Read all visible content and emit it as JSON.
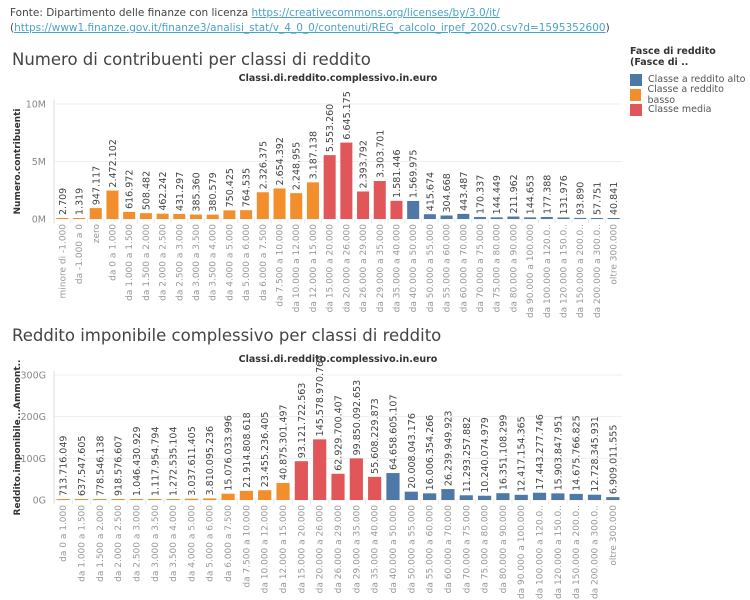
{
  "source": {
    "prefix": "Fonte: Dipartimento delle finanze con licenza ",
    "license_link": "https://creativecommons.org/licenses/by/3.0/it/",
    "open_paren": "(",
    "data_link": "https://www1.finanze.gov.it/finanze3/analisi_stat/v_4_0_0/contenuti/REG_calcolo_irpef_2020.csv?d=1595352600",
    "close_paren": ")"
  },
  "legend": {
    "title": "Fasce di reddito (Fasce di ..",
    "items": [
      {
        "label": "Classe a reddito alto",
        "color": "#4e79a7"
      },
      {
        "label": "Classe a reddito basso",
        "color": "#f28e2b"
      },
      {
        "label": "Classe media",
        "color": "#e15759"
      }
    ]
  },
  "chart_data": [
    {
      "type": "bar",
      "title": "Numero di contribuenti per classi di reddito",
      "header": "Classi.di.reddito.complessivo.in.euro",
      "xlabel": "Classi.di.reddito.complessivo.in.euro",
      "ylabel": "Numero.contribuenti",
      "ylim": [
        0,
        10000000
      ],
      "yticks": [
        {
          "v": 0,
          "label": "0M"
        },
        {
          "v": 5000000,
          "label": "5M"
        },
        {
          "v": 10000000,
          "label": "10M"
        }
      ],
      "grid": true,
      "legend": "right",
      "categories": [
        "minore di -1.000",
        "da -1.000 a 0",
        "zero",
        "da 0 a 1.000",
        "da 1.000 a 1.500",
        "da 1.500 a 2.000",
        "da 2.000 a 2.500",
        "da 2.500 a 3.000",
        "da 3.000 a 3.500",
        "da 3.500 a 4.000",
        "da 4.000 a 5.000",
        "da 5.000 a 6.000",
        "da 6.000 a 7.500",
        "da 7.500 a 10.000",
        "da 10.000 a 12.000",
        "da 12.000 a 15.000",
        "da 15.000 a 20.000",
        "da 20.000 a 26.000",
        "da 26.000 a 29.000",
        "da 29.000 a 35.000",
        "da 35.000 a 40.000",
        "da 40.000 a 50.000",
        "da 50.000 a 55.000",
        "da 55.000 a 60.000",
        "da 60.000 a 70.000",
        "da 70.000 a 75.000",
        "da 75.000 a 80.000",
        "da 80.000 a 90.000",
        "da 90.000 a 100.000",
        "da 100.000 a 120.0..",
        "da 120.000 a 150.0..",
        "da 150.000 a 200.0..",
        "da 200.000 a 300.0..",
        "oltre 300.000"
      ],
      "values": [
        2709,
        1319,
        947117,
        2472102,
        616972,
        508482,
        462242,
        431297,
        385360,
        380579,
        750425,
        764535,
        2326375,
        2654392,
        2248955,
        3187138,
        5553260,
        6645175,
        2393792,
        3303701,
        1581446,
        1569975,
        415674,
        304668,
        443487,
        170337,
        144449,
        211962,
        144653,
        177388,
        131976,
        93890,
        57751,
        40841
      ],
      "labels": [
        "2.709",
        "1.319",
        "947.117",
        "2.472.102",
        "616.972",
        "508.482",
        "462.242",
        "431.297",
        "385.360",
        "380.579",
        "750.425",
        "764.535",
        "2.326.375",
        "2.654.392",
        "2.248.955",
        "3.187.138",
        "5.553.260",
        "6.645.175",
        "2.393.792",
        "3.303.701",
        "1.581.446",
        "1.569.975",
        "415.674",
        "304.668",
        "443.487",
        "170.337",
        "144.449",
        "211.962",
        "144.653",
        "177.388",
        "131.976",
        "93.890",
        "57.751",
        "40.841"
      ],
      "classes": [
        "basso",
        "basso",
        "basso",
        "basso",
        "basso",
        "basso",
        "basso",
        "basso",
        "basso",
        "basso",
        "basso",
        "basso",
        "basso",
        "basso",
        "basso",
        "basso",
        "media",
        "media",
        "media",
        "media",
        "media",
        "alto",
        "alto",
        "alto",
        "alto",
        "alto",
        "alto",
        "alto",
        "alto",
        "alto",
        "alto",
        "alto",
        "alto",
        "alto"
      ]
    },
    {
      "type": "bar",
      "title": "Reddito imponibile complessivo per classi di reddito",
      "header": "Classi.di.reddito.complessivo.in.euro",
      "xlabel": "Classi.di.reddito.complessivo.in.euro",
      "ylabel": "Reddito.imponibile...Ammont..",
      "ylim": [
        0,
        300000000000
      ],
      "yticks": [
        {
          "v": 0,
          "label": "0G"
        },
        {
          "v": 100000000000,
          "label": "100G"
        },
        {
          "v": 200000000000,
          "label": "200G"
        },
        {
          "v": 300000000000,
          "label": "300G"
        }
      ],
      "grid": true,
      "legend": "right",
      "categories": [
        "da 0 a 1.000",
        "da 1.000 a 1.500",
        "da 1.500 a 2.000",
        "da 2.000 a 2.500",
        "da 2.500 a 3.000",
        "da 3.000 a 3.500",
        "da 3.500 a 4.000",
        "da 4.000 a 5.000",
        "da 5.000 a 6.000",
        "da 6.000 a 7.500",
        "da 7.500 a 10.000",
        "da 10.000 a 12.000",
        "da 12.000 a 15.000",
        "da 15.000 a 20.000",
        "da 20.000 a 26.000",
        "da 26.000 a 29.000",
        "da 29.000 a 35.000",
        "da 35.000 a 40.000",
        "da 40.000 a 50.000",
        "da 50.000 a 55.000",
        "da 55.000 a 60.000",
        "da 60.000 a 70.000",
        "da 70.000 a 75.000",
        "da 75.000 a 80.000",
        "da 80.000 a 90.000",
        "da 90.000 a 100.000",
        "da 100.000 a 120.0..",
        "da 120.000 a 150.0..",
        "da 150.000 a 200.0..",
        "da 200.000 a 300.0..",
        "oltre 300.000"
      ],
      "values": [
        713716049,
        637547605,
        778546138,
        918576607,
        1046430929,
        1117954794,
        1272535104,
        3037611405,
        3810095236,
        15076033996,
        21914808618,
        23455236405,
        40875301497,
        93121722563,
        145578970764,
        62929700407,
        99850092653,
        55608229873,
        64658605107,
        20008043176,
        16006354266,
        26239949923,
        11293257882,
        10240074979,
        16351108299,
        12417154365,
        17443277746,
        15903847951,
        14675766825,
        12728345931,
        6909011555
      ],
      "labels": [
        "713.716.049",
        "637.547.605",
        "778.546.138",
        "918.576.607",
        "1.046.430.929",
        "1.117.954.794",
        "1.272.535.104",
        "3.037.611.405",
        "3.810.095.236",
        "15.076.033.996",
        "21.914.808.618",
        "23.455.236.405",
        "40.875.301.497",
        "93.121.722.563",
        "145.578.970.764",
        "62.929.700.407",
        "99.850.092.653",
        "55.608.229.873",
        "64.658.605.107",
        "20.008.043.176",
        "16.006.354.266",
        "26.239.949.923",
        "11.293.257.882",
        "10.240.074.979",
        "16.351.108.299",
        "12.417.154.365",
        "17.443.277.746",
        "15.903.847.951",
        "14.675.766.825",
        "12.728.345.931",
        "6.909.011.555"
      ],
      "classes": [
        "basso",
        "basso",
        "basso",
        "basso",
        "basso",
        "basso",
        "basso",
        "basso",
        "basso",
        "basso",
        "basso",
        "basso",
        "basso",
        "media",
        "media",
        "media",
        "media",
        "media",
        "alto",
        "alto",
        "alto",
        "alto",
        "alto",
        "alto",
        "alto",
        "alto",
        "alto",
        "alto",
        "alto",
        "alto",
        "alto"
      ]
    }
  ]
}
